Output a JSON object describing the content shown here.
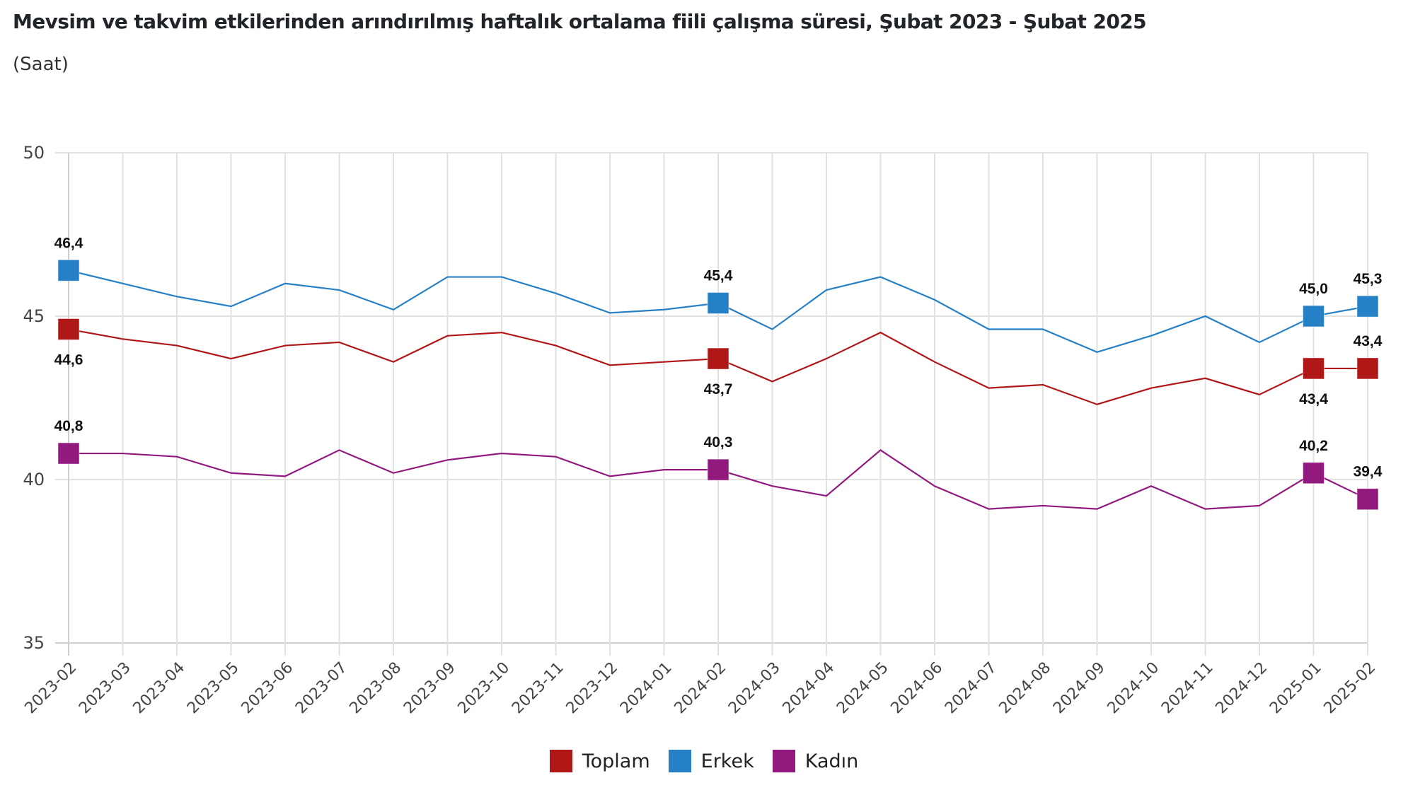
{
  "header": {
    "title": "Mevsim ve takvim etkilerinden arındırılmış haftalık ortalama fiili çalışma süresi, Şubat 2023 - Şubat 2025",
    "subtitle": "(Saat)"
  },
  "legend": [
    {
      "name": "Toplam",
      "color": "#B01717"
    },
    {
      "name": "Erkek",
      "color": "#2680C6"
    },
    {
      "name": "Kadın",
      "color": "#921A7E"
    }
  ],
  "chart_data": {
    "type": "line",
    "title": "Mevsim ve takvim etkilerinden arındırılmış haftalık ortalama fiili çalışma süresi, Şubat 2023 - Şubat 2025",
    "subtitle": "(Saat)",
    "xlabel": "",
    "ylabel": "",
    "ylim": [
      35,
      50
    ],
    "yticks": [
      35,
      40,
      45,
      50
    ],
    "grid": true,
    "legend_position": "bottom-center",
    "decimal_separator": ",",
    "x": [
      "2023-02",
      "2023-03",
      "2023-04",
      "2023-05",
      "2023-06",
      "2023-07",
      "2023-08",
      "2023-09",
      "2023-10",
      "2023-11",
      "2023-12",
      "2024-01",
      "2024-02",
      "2024-03",
      "2024-04",
      "2024-05",
      "2024-06",
      "2024-07",
      "2024-08",
      "2024-09",
      "2024-10",
      "2024-11",
      "2024-12",
      "2025-01",
      "2025-02"
    ],
    "series": [
      {
        "name": "Toplam",
        "color": "#B01717",
        "values": [
          44.6,
          44.3,
          44.1,
          43.7,
          44.1,
          44.2,
          43.6,
          44.4,
          44.5,
          44.1,
          43.5,
          43.6,
          43.7,
          43.0,
          43.7,
          44.5,
          43.6,
          42.8,
          42.9,
          42.3,
          42.8,
          43.1,
          42.6,
          43.4,
          43.4
        ],
        "labeled_points": [
          {
            "index": 0,
            "label": "44,6",
            "position": "below"
          },
          {
            "index": 12,
            "label": "43,7",
            "position": "below"
          },
          {
            "index": 23,
            "label": "43,4",
            "position": "below"
          },
          {
            "index": 24,
            "label": "43,4",
            "position": "above"
          }
        ]
      },
      {
        "name": "Erkek",
        "color": "#2680C6",
        "values": [
          46.4,
          46.0,
          45.6,
          45.3,
          46.0,
          45.8,
          45.2,
          46.2,
          46.2,
          45.7,
          45.1,
          45.2,
          45.4,
          44.6,
          45.8,
          46.2,
          45.5,
          44.6,
          44.6,
          43.9,
          44.4,
          45.0,
          44.2,
          45.0,
          45.3
        ],
        "labeled_points": [
          {
            "index": 0,
            "label": "46,4",
            "position": "above"
          },
          {
            "index": 12,
            "label": "45,4",
            "position": "above"
          },
          {
            "index": 23,
            "label": "45,0",
            "position": "above"
          },
          {
            "index": 24,
            "label": "45,3",
            "position": "above"
          }
        ]
      },
      {
        "name": "Kadın",
        "color": "#921A7E",
        "values": [
          40.8,
          40.8,
          40.7,
          40.2,
          40.1,
          40.9,
          40.2,
          40.6,
          40.8,
          40.7,
          40.1,
          40.3,
          40.3,
          39.8,
          39.5,
          40.9,
          39.8,
          39.1,
          39.2,
          39.1,
          39.8,
          39.1,
          39.2,
          40.2,
          39.4
        ],
        "labeled_points": [
          {
            "index": 0,
            "label": "40,8",
            "position": "above"
          },
          {
            "index": 12,
            "label": "40,3",
            "position": "above"
          },
          {
            "index": 23,
            "label": "40,2",
            "position": "above"
          },
          {
            "index": 24,
            "label": "39,4",
            "position": "above"
          }
        ]
      }
    ]
  }
}
